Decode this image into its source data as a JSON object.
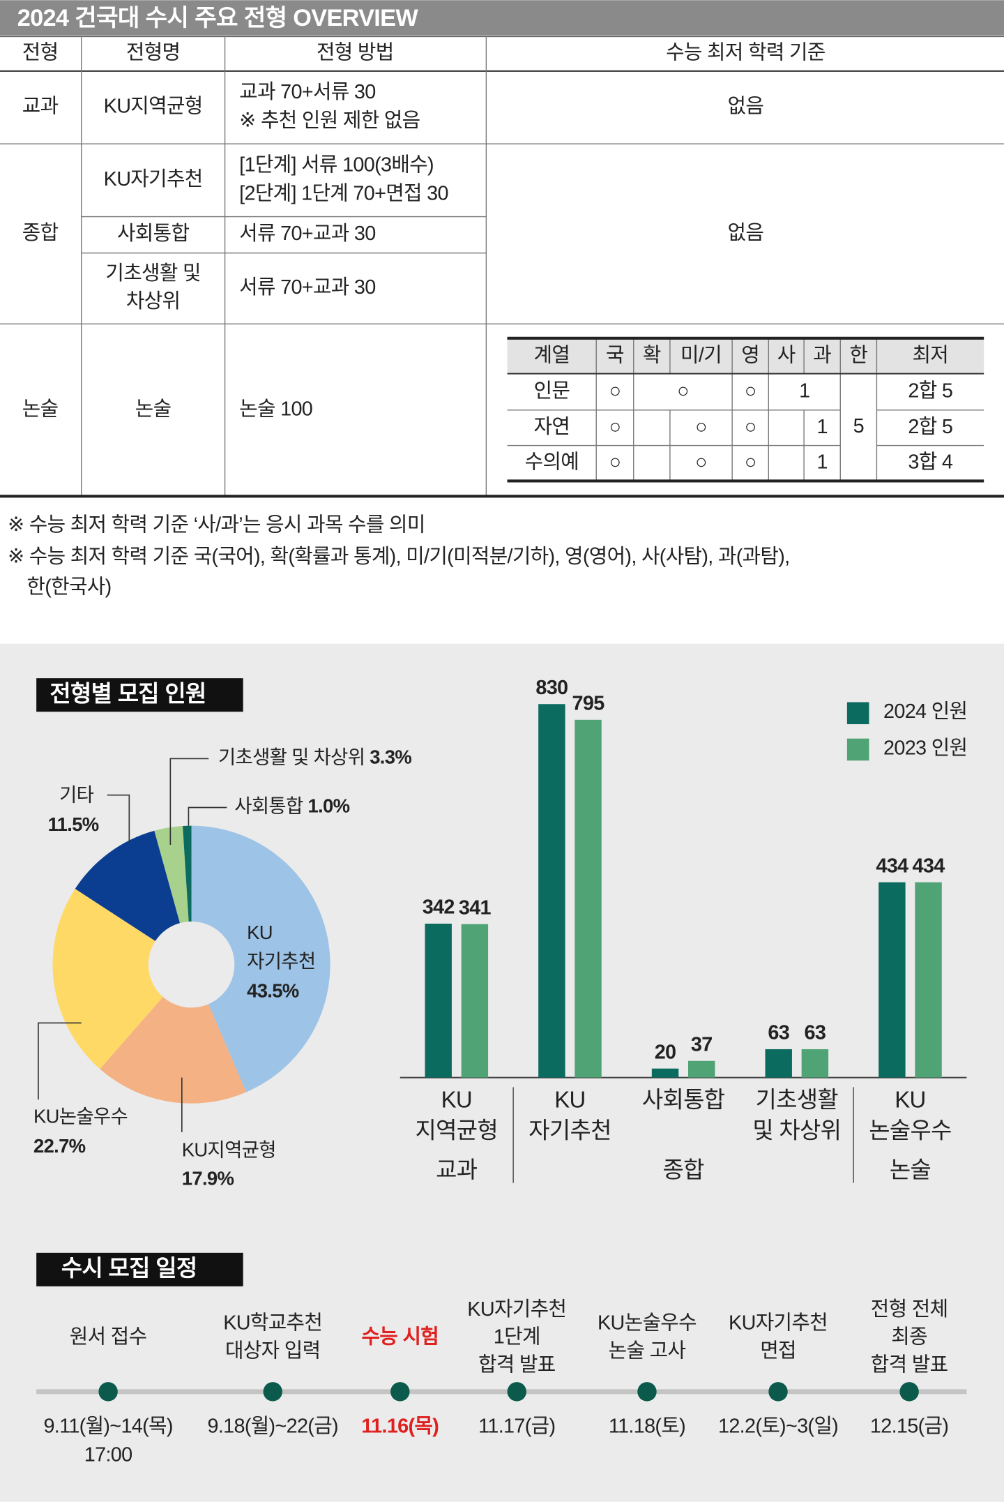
{
  "header": {
    "title": "2024 건국대 수시 주요 전형 OVERVIEW"
  },
  "table": {
    "columns": [
      "전형",
      "전형명",
      "전형 방법",
      "수능 최저 학력 기준"
    ],
    "groups": [
      {
        "label": "교과",
        "criteria": "없음",
        "items": [
          {
            "name": [
              "KU지역균형"
            ],
            "method": [
              "교과 70+서류 30",
              "※ 추천 인원 제한 없음"
            ]
          }
        ]
      },
      {
        "label": "종합",
        "criteria": "없음",
        "items": [
          {
            "name": [
              "KU자기추천"
            ],
            "method": [
              "[1단계] 서류 100(3배수)",
              "[2단계] 1단계 70+면접 30"
            ]
          },
          {
            "name": [
              "사회통합"
            ],
            "method": [
              "서류 70+교과 30"
            ]
          },
          {
            "name": [
              "기초생활 및",
              "차상위"
            ],
            "method": [
              "서류 70+교과 30"
            ]
          }
        ]
      },
      {
        "label": "논술",
        "items": [
          {
            "name": [
              "논술"
            ],
            "method": [
              "논술 100"
            ]
          }
        ],
        "criteria_table": {
          "columns": [
            "계열",
            "국",
            "확",
            "미/기",
            "영",
            "사",
            "과",
            "한",
            "최저"
          ],
          "rows": [
            [
              "인문",
              "○",
              "○",
              "○",
              "1",
              "2합 5"
            ],
            [
              "자연",
              "○",
              "○",
              "○",
              "1",
              "2합 5"
            ],
            [
              "수의예",
              "○",
              "○",
              "○",
              "1",
              "3합 4"
            ]
          ],
          "merged": "5"
        }
      }
    ]
  },
  "notes": [
    "※ 수능 최저 학력 기준 ‘사/과’는 응시 과목 수를 의미",
    "※ 수능 최저 학력 기준 국(국어), 확(확률과 통계), 미/기(미적분/기하), 영(영어), 사(사탐), 과(과탐),",
    "한(한국사)"
  ],
  "chart_data": [
    {
      "type": "pie",
      "title": "전형별 모집 인원",
      "categories": [
        [
          "KU",
          "자기추천"
        ],
        [
          "KU지역균형"
        ],
        [
          "KU논술우수"
        ],
        [
          "기타"
        ],
        [
          "기초생활 및 차상위"
        ],
        [
          "사회통합"
        ]
      ],
      "values": [
        43.5,
        17.9,
        22.7,
        11.5,
        3.3,
        1.0
      ],
      "value_labels": [
        "43.5%",
        "17.9%",
        "22.7%",
        "11.5%",
        "3.3%",
        "1.0%"
      ],
      "colors": [
        "#9dc3e6",
        "#f4b183",
        "#ffd966",
        "#0b3d91",
        "#a9d18e",
        "#0b6b5f"
      ]
    },
    {
      "type": "bar",
      "legend": "top-right",
      "groups": [
        {
          "label": "교과",
          "categories": [
            [
              "KU",
              "지역균형"
            ]
          ]
        },
        {
          "label": "종합",
          "categories": [
            [
              "KU",
              "자기추천"
            ],
            [
              "사회통합"
            ],
            [
              "기초생활",
              "및 차상위"
            ]
          ]
        },
        {
          "label": "논술",
          "categories": [
            [
              "KU",
              "논술우수"
            ]
          ]
        }
      ],
      "series": [
        {
          "name": "2024 인원",
          "color": "#0b6b5f",
          "values": [
            342,
            830,
            20,
            63,
            434
          ]
        },
        {
          "name": "2023 인원",
          "color": "#4fa374",
          "values": [
            341,
            795,
            37,
            63,
            434
          ]
        }
      ]
    }
  ],
  "schedule": {
    "title": "수시 모집 일정",
    "events": [
      {
        "label": [
          "원서 접수"
        ],
        "date": [
          "9.11(월)~14(목)",
          "17:00"
        ]
      },
      {
        "label": [
          "KU학교추천",
          "대상자 입력"
        ],
        "date": [
          "9.18(월)~22(금)"
        ]
      },
      {
        "label": [
          "수능 시험"
        ],
        "date": [
          "11.16(목)"
        ],
        "color": "#e0201f"
      },
      {
        "label": [
          "KU자기추천",
          "1단계",
          "합격 발표"
        ],
        "date": [
          "11.17(금)"
        ]
      },
      {
        "label": [
          "KU논술우수",
          "논술 고사"
        ],
        "date": [
          "11.18(토)"
        ]
      },
      {
        "label": [
          "KU자기추천",
          "면접"
        ],
        "date": [
          "12.2(토)~3(일)"
        ]
      },
      {
        "label": [
          "전형 전체",
          "최종",
          "합격 발표"
        ],
        "date": [
          "12.15(금)"
        ]
      }
    ]
  }
}
